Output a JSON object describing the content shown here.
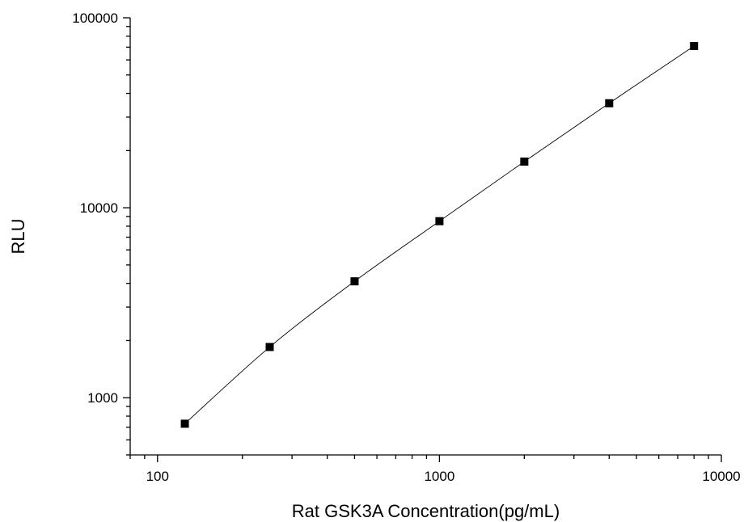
{
  "chart_data": {
    "type": "scatter",
    "title": "",
    "xlabel": "Rat GSK3A Concentration(pg/mL)",
    "ylabel": "RLU",
    "x_scale": "log",
    "y_scale": "log",
    "xlim": [
      80,
      10000
    ],
    "ylim": [
      500,
      100000
    ],
    "x_ticks": [
      {
        "value": 100,
        "label": "100"
      },
      {
        "value": 1000,
        "label": "1000"
      },
      {
        "value": 10000,
        "label": "10000"
      }
    ],
    "y_ticks": [
      {
        "value": 1000,
        "label": "1000"
      },
      {
        "value": 10000,
        "label": "10000"
      },
      {
        "value": 100000,
        "label": "100000"
      }
    ],
    "grid": false,
    "legend": "none",
    "connect_points": true,
    "series": [
      {
        "x": [
          125,
          250,
          500,
          1000,
          2000,
          4000,
          8000
        ],
        "y": [
          730,
          1850,
          4100,
          8500,
          17500,
          35500,
          71000
        ]
      }
    ],
    "colors": {
      "marker": "#000000",
      "line": "#000000",
      "axis": "#000000"
    }
  }
}
